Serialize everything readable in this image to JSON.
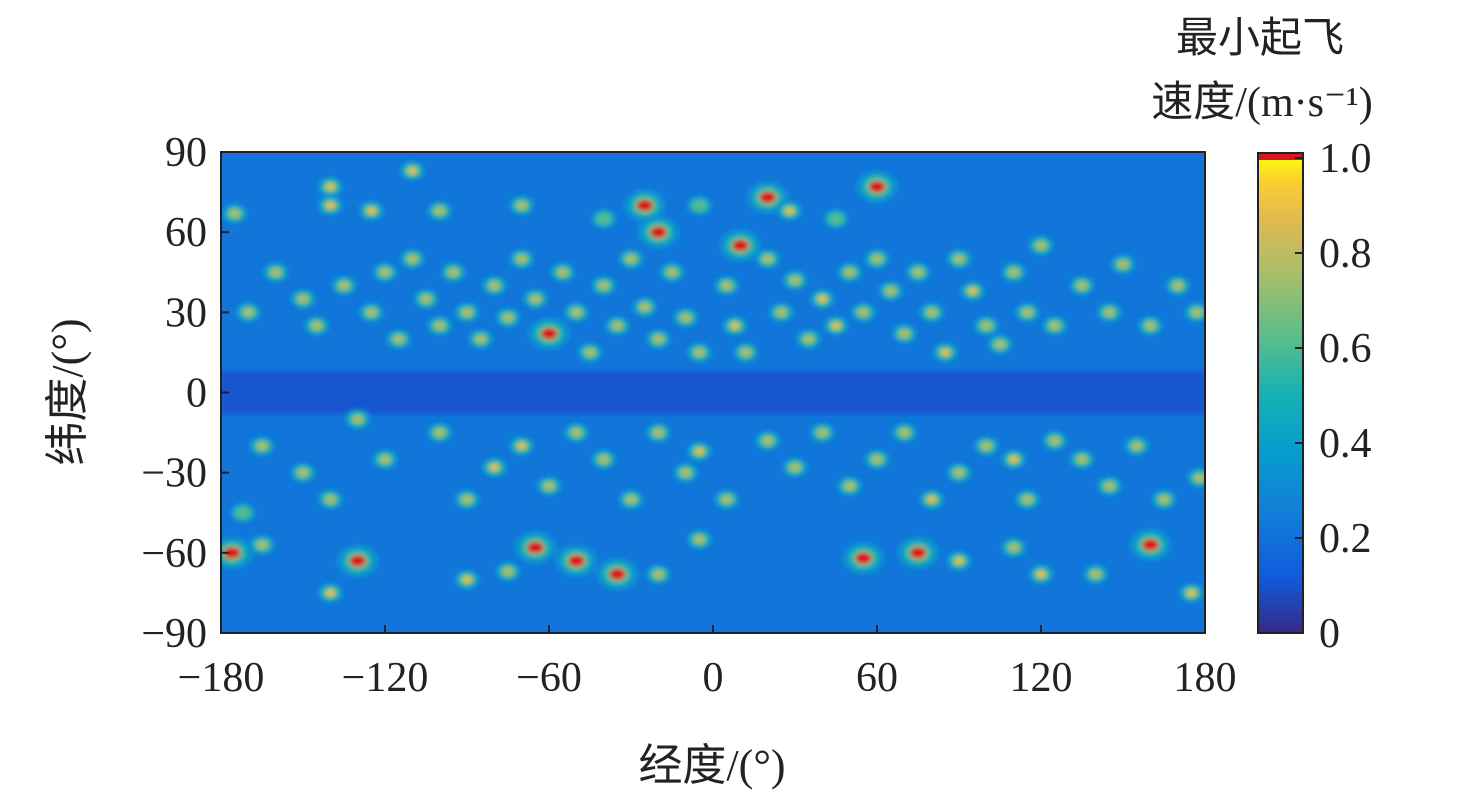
{
  "chart_data": {
    "type": "heatmap",
    "title": "",
    "xlabel": "经度/(°)",
    "ylabel": "纬度/(°)",
    "xlim": [
      -180,
      180
    ],
    "ylim": [
      -90,
      90
    ],
    "x_ticks": [
      -180,
      -120,
      -60,
      0,
      60,
      120,
      180
    ],
    "y_ticks": [
      90,
      60,
      30,
      0,
      -30,
      -60,
      -90
    ],
    "x_tick_labels": [
      "−180",
      "−120",
      "−60",
      "0",
      "60",
      "120",
      "180"
    ],
    "y_tick_labels": [
      "90",
      "60",
      "30",
      "0",
      "−30",
      "−60",
      "−90"
    ],
    "grid": false,
    "colorbar": {
      "title_line1": "最小起飞",
      "title_line2": "速度/(m·s⁻¹)",
      "range": [
        0,
        1.0
      ],
      "ticks": [
        0,
        0.2,
        0.4,
        0.6,
        0.8,
        1.0
      ],
      "tick_labels": [
        "0",
        "0.2",
        "0.4",
        "0.6",
        "0.8",
        "1.0"
      ],
      "colormap": "parula",
      "overflow_color": "#d7191c"
    },
    "background_value": 0.22,
    "equatorial_band": {
      "lat_range": [
        -8,
        8
      ],
      "value": 0.1
    },
    "hotspots": [
      [
        -176,
        -60,
        1.3
      ],
      [
        -165,
        -57,
        0.75
      ],
      [
        -130,
        -63,
        1.25
      ],
      [
        -140,
        -75,
        0.9
      ],
      [
        -172,
        -45,
        0.7
      ],
      [
        -65,
        -58,
        1.2
      ],
      [
        -50,
        -63,
        1.3
      ],
      [
        -35,
        -68,
        1.2
      ],
      [
        -90,
        -70,
        0.9
      ],
      [
        -75,
        -67,
        0.85
      ],
      [
        -20,
        -68,
        0.8
      ],
      [
        -5,
        -55,
        0.75
      ],
      [
        55,
        -62,
        1.3
      ],
      [
        75,
        -60,
        1.25
      ],
      [
        90,
        -63,
        1.0
      ],
      [
        120,
        -68,
        0.9
      ],
      [
        160,
        -57,
        1.1
      ],
      [
        175,
        -75,
        0.95
      ],
      [
        140,
        -68,
        0.8
      ],
      [
        110,
        -58,
        0.75
      ],
      [
        -140,
        77,
        0.95
      ],
      [
        -140,
        70,
        1.0
      ],
      [
        -125,
        68,
        0.95
      ],
      [
        -110,
        83,
        0.9
      ],
      [
        -25,
        70,
        1.2
      ],
      [
        20,
        73,
        1.2
      ],
      [
        28,
        68,
        1.0
      ],
      [
        60,
        77,
        1.3
      ],
      [
        -20,
        60,
        1.2
      ],
      [
        10,
        55,
        1.1
      ],
      [
        -175,
        67,
        0.75
      ],
      [
        -70,
        70,
        0.75
      ],
      [
        -40,
        65,
        0.7
      ],
      [
        -5,
        70,
        0.7
      ],
      [
        45,
        65,
        0.7
      ],
      [
        -100,
        68,
        0.75
      ],
      [
        -170,
        30,
        0.8
      ],
      [
        -160,
        45,
        0.8
      ],
      [
        -150,
        35,
        0.8
      ],
      [
        -145,
        25,
        0.85
      ],
      [
        -135,
        40,
        0.8
      ],
      [
        -125,
        30,
        0.8
      ],
      [
        -120,
        45,
        0.85
      ],
      [
        -115,
        20,
        0.8
      ],
      [
        -110,
        50,
        0.85
      ],
      [
        -105,
        35,
        0.8
      ],
      [
        -100,
        25,
        0.85
      ],
      [
        -95,
        45,
        0.8
      ],
      [
        -90,
        30,
        0.85
      ],
      [
        -85,
        20,
        0.8
      ],
      [
        -80,
        40,
        0.85
      ],
      [
        -75,
        28,
        0.8
      ],
      [
        -70,
        50,
        0.8
      ],
      [
        -65,
        35,
        0.85
      ],
      [
        -60,
        22,
        1.1
      ],
      [
        -55,
        45,
        0.8
      ],
      [
        -50,
        30,
        0.85
      ],
      [
        -45,
        15,
        0.8
      ],
      [
        -40,
        40,
        0.85
      ],
      [
        -35,
        25,
        0.8
      ],
      [
        -30,
        50,
        0.8
      ],
      [
        -25,
        32,
        0.85
      ],
      [
        -20,
        20,
        0.8
      ],
      [
        -15,
        45,
        0.8
      ],
      [
        -10,
        28,
        0.85
      ],
      [
        -5,
        15,
        0.8
      ],
      [
        5,
        40,
        0.8
      ],
      [
        8,
        25,
        1.0
      ],
      [
        12,
        15,
        0.8
      ],
      [
        20,
        50,
        0.8
      ],
      [
        25,
        30,
        0.85
      ],
      [
        30,
        42,
        0.8
      ],
      [
        35,
        20,
        0.8
      ],
      [
        40,
        35,
        0.9
      ],
      [
        45,
        25,
        1.0
      ],
      [
        50,
        45,
        0.8
      ],
      [
        55,
        30,
        0.85
      ],
      [
        60,
        50,
        0.8
      ],
      [
        65,
        38,
        0.85
      ],
      [
        70,
        22,
        0.8
      ],
      [
        75,
        45,
        0.8
      ],
      [
        80,
        30,
        0.85
      ],
      [
        85,
        15,
        0.9
      ],
      [
        90,
        50,
        0.8
      ],
      [
        95,
        38,
        1.0
      ],
      [
        100,
        25,
        0.85
      ],
      [
        105,
        18,
        0.8
      ],
      [
        110,
        45,
        0.85
      ],
      [
        115,
        30,
        0.8
      ],
      [
        120,
        55,
        0.8
      ],
      [
        125,
        25,
        0.85
      ],
      [
        135,
        40,
        0.8
      ],
      [
        145,
        30,
        0.8
      ],
      [
        150,
        48,
        0.8
      ],
      [
        160,
        25,
        0.85
      ],
      [
        170,
        40,
        0.8
      ],
      [
        177,
        30,
        0.8
      ],
      [
        -165,
        -20,
        0.75
      ],
      [
        -150,
        -30,
        0.75
      ],
      [
        -140,
        -40,
        0.75
      ],
      [
        -130,
        -10,
        0.75
      ],
      [
        -120,
        -25,
        0.75
      ],
      [
        -100,
        -15,
        0.75
      ],
      [
        -90,
        -40,
        0.85
      ],
      [
        -80,
        -28,
        0.9
      ],
      [
        -70,
        -20,
        1.0
      ],
      [
        -60,
        -35,
        0.75
      ],
      [
        -50,
        -15,
        0.75
      ],
      [
        -40,
        -25,
        0.75
      ],
      [
        -30,
        -40,
        0.8
      ],
      [
        -20,
        -15,
        0.8
      ],
      [
        -10,
        -30,
        0.8
      ],
      [
        -5,
        -22,
        0.9
      ],
      [
        5,
        -40,
        0.75
      ],
      [
        20,
        -18,
        0.75
      ],
      [
        30,
        -28,
        0.85
      ],
      [
        40,
        -15,
        0.75
      ],
      [
        50,
        -35,
        0.75
      ],
      [
        60,
        -25,
        0.75
      ],
      [
        70,
        -15,
        0.8
      ],
      [
        80,
        -40,
        0.9
      ],
      [
        90,
        -30,
        0.85
      ],
      [
        100,
        -20,
        0.75
      ],
      [
        110,
        -25,
        1.0
      ],
      [
        115,
        -40,
        0.8
      ],
      [
        125,
        -18,
        0.75
      ],
      [
        135,
        -25,
        0.8
      ],
      [
        145,
        -35,
        0.75
      ],
      [
        155,
        -20,
        0.8
      ],
      [
        165,
        -40,
        0.8
      ],
      [
        178,
        -32,
        0.8
      ]
    ]
  }
}
